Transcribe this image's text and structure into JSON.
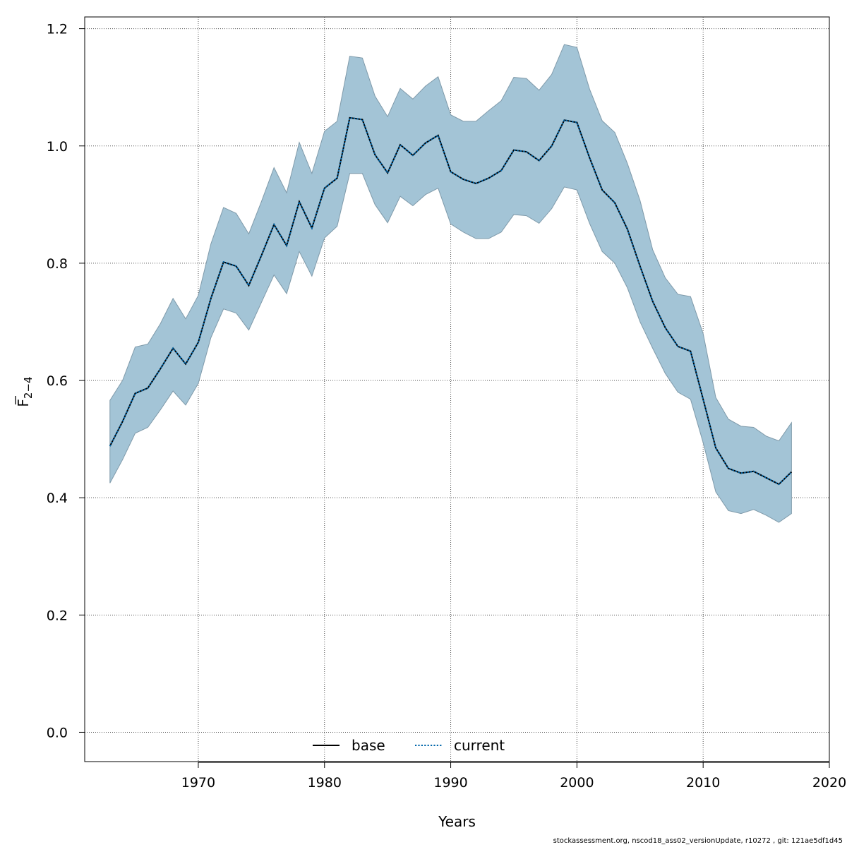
{
  "chart_data": {
    "type": "line",
    "xlabel": "Years",
    "ylabel": "F",
    "ylabel_subscript": "2−4",
    "xlim": [
      1961,
      2020
    ],
    "ylim": [
      -0.05,
      1.22
    ],
    "x_ticks": [
      1970,
      1980,
      1990,
      2000,
      2010,
      2020
    ],
    "y_ticks": [
      0.0,
      0.2,
      0.4,
      0.6,
      0.8,
      1.0,
      1.2
    ],
    "y_tick_labels": [
      "0.0",
      "0.2",
      "0.4",
      "0.6",
      "0.8",
      "1.0",
      "1.2"
    ],
    "grid": true,
    "legend_position": "bottom-center",
    "colors": {
      "band": "#a3c4d6",
      "band_edge": "#7f9aaa",
      "current": "#0066aa",
      "base": "#000000",
      "grid": "#555555"
    },
    "x": [
      1963,
      1964,
      1965,
      1966,
      1967,
      1968,
      1969,
      1970,
      1971,
      1972,
      1973,
      1974,
      1975,
      1976,
      1977,
      1978,
      1979,
      1980,
      1981,
      1982,
      1983,
      1984,
      1985,
      1986,
      1987,
      1988,
      1989,
      1990,
      1991,
      1992,
      1993,
      1994,
      1995,
      1996,
      1997,
      1998,
      1999,
      2000,
      2001,
      2002,
      2003,
      2004,
      2005,
      2006,
      2007,
      2008,
      2009,
      2010,
      2011,
      2012,
      2013,
      2014,
      2015,
      2016,
      2017
    ],
    "series": [
      {
        "name": "base",
        "style": "solid",
        "values": [
          0.488,
          0.53,
          0.578,
          0.587,
          0.62,
          0.655,
          0.628,
          0.665,
          0.74,
          0.802,
          0.795,
          0.762,
          0.813,
          0.866,
          0.83,
          0.905,
          0.86,
          0.928,
          0.945,
          1.048,
          1.045,
          0.985,
          0.954,
          1.002,
          0.984,
          1.005,
          1.018,
          0.956,
          0.943,
          0.936,
          0.945,
          0.958,
          0.993,
          0.99,
          0.975,
          1.0,
          1.044,
          1.04,
          0.98,
          0.925,
          0.903,
          0.858,
          0.795,
          0.735,
          0.69,
          0.658,
          0.65,
          0.568,
          0.485,
          0.45,
          0.442,
          0.445,
          0.434,
          0.423,
          0.444
        ]
      },
      {
        "name": "current",
        "style": "dotted",
        "values": [
          0.488,
          0.53,
          0.578,
          0.587,
          0.62,
          0.655,
          0.628,
          0.665,
          0.74,
          0.802,
          0.795,
          0.762,
          0.813,
          0.866,
          0.83,
          0.905,
          0.86,
          0.928,
          0.945,
          1.048,
          1.045,
          0.985,
          0.954,
          1.002,
          0.984,
          1.005,
          1.018,
          0.956,
          0.943,
          0.936,
          0.945,
          0.958,
          0.993,
          0.99,
          0.975,
          1.0,
          1.044,
          1.04,
          0.98,
          0.925,
          0.903,
          0.858,
          0.795,
          0.735,
          0.69,
          0.658,
          0.65,
          0.568,
          0.485,
          0.45,
          0.442,
          0.445,
          0.434,
          0.423,
          0.444
        ]
      }
    ],
    "band": {
      "lower": [
        0.425,
        0.465,
        0.51,
        0.52,
        0.55,
        0.582,
        0.558,
        0.595,
        0.673,
        0.722,
        0.715,
        0.686,
        0.733,
        0.78,
        0.748,
        0.82,
        0.778,
        0.843,
        0.863,
        0.953,
        0.953,
        0.9,
        0.869,
        0.914,
        0.898,
        0.917,
        0.928,
        0.867,
        0.853,
        0.842,
        0.842,
        0.853,
        0.883,
        0.881,
        0.868,
        0.893,
        0.93,
        0.925,
        0.868,
        0.82,
        0.8,
        0.758,
        0.7,
        0.655,
        0.612,
        0.58,
        0.568,
        0.494,
        0.41,
        0.378,
        0.373,
        0.38,
        0.37,
        0.358,
        0.373
      ],
      "upper": [
        0.566,
        0.6,
        0.657,
        0.662,
        0.697,
        0.74,
        0.705,
        0.745,
        0.833,
        0.895,
        0.885,
        0.85,
        0.905,
        0.963,
        0.92,
        1.006,
        0.953,
        1.025,
        1.042,
        1.153,
        1.15,
        1.085,
        1.05,
        1.098,
        1.08,
        1.102,
        1.118,
        1.053,
        1.042,
        1.042,
        1.06,
        1.077,
        1.117,
        1.115,
        1.095,
        1.122,
        1.173,
        1.168,
        1.097,
        1.043,
        1.023,
        0.97,
        0.907,
        0.823,
        0.775,
        0.747,
        0.743,
        0.68,
        0.571,
        0.534,
        0.522,
        0.52,
        0.505,
        0.497,
        0.528
      ]
    }
  },
  "legend": {
    "items": [
      {
        "label": "base"
      },
      {
        "label": "current"
      }
    ]
  },
  "footer": {
    "text": "stockassessment.org, nscod18_ass02_versionUpdate, r10272 , git: 121ae5df1d45"
  }
}
